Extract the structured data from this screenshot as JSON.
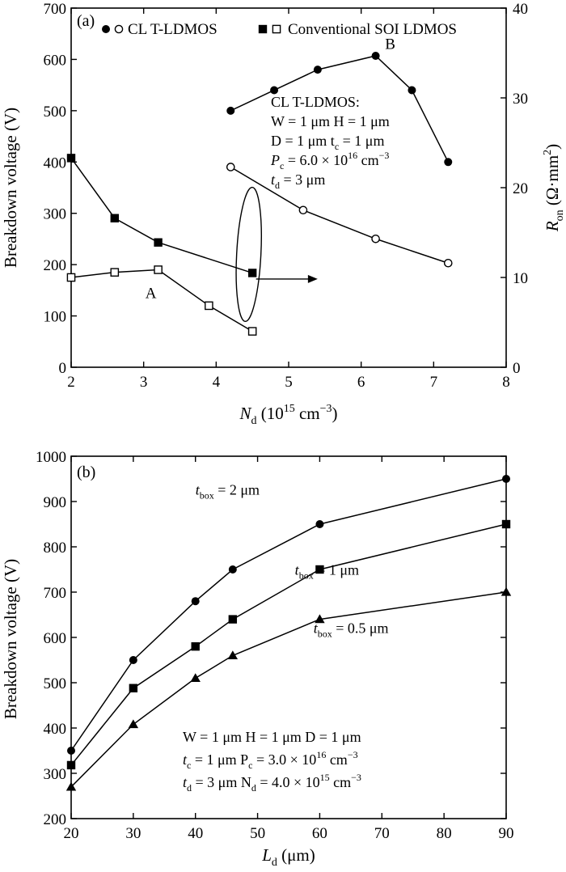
{
  "chart_data": [
    {
      "panel": "(a)",
      "type": "line",
      "xlabel": {
        "sym": "N",
        "sub": "d",
        "unit": " (10",
        "sup": "15",
        "unit2": " cm",
        "sup2": "−3",
        "close": ")"
      },
      "ylabel_left": "Breakdown voltage (V)",
      "ylabel_right": {
        "sym": "R",
        "sub": "on",
        "unit": " (Ω·mm",
        "sup": "2",
        "close": ")"
      },
      "xlim": [
        2,
        8
      ],
      "ylim_left": [
        0,
        700
      ],
      "ylim_right": [
        0,
        40
      ],
      "xticks": [
        "2",
        "3",
        "4",
        "5",
        "6",
        "7",
        "8"
      ],
      "yticks_left": [
        "0",
        "100",
        "200",
        "300",
        "400",
        "500",
        "600",
        "700"
      ],
      "yticks_right": [
        "0",
        "10",
        "20",
        "30",
        "40"
      ],
      "legend": [
        {
          "markers": [
            "filled-circle",
            "open-circle"
          ],
          "label": "CL T-LDMOS"
        },
        {
          "markers": [
            "filled-square",
            "open-square"
          ],
          "label": "Conventional SOI LDMOS"
        }
      ],
      "series": [
        {
          "name": "CL T-LDMOS",
          "marker": "filled-circle",
          "axis": "left",
          "x": [
            4.2,
            4.8,
            5.4,
            6.2,
            6.7,
            7.2
          ],
          "y": [
            500,
            540,
            580,
            607,
            540,
            400
          ]
        },
        {
          "name": "CL T-LDMOS",
          "marker": "open-circle",
          "axis": "right",
          "x": [
            4.2,
            5.2,
            6.2,
            7.2
          ],
          "y": [
            22.3,
            17.5,
            14.3,
            11.6
          ]
        },
        {
          "name": "Conventional SOI LDMOS",
          "marker": "filled-square",
          "axis": "right",
          "x": [
            2.0,
            2.6,
            3.2,
            4.5
          ],
          "y": [
            23.3,
            16.6,
            13.9,
            10.5
          ]
        },
        {
          "name": "Conventional SOI LDMOS",
          "marker": "open-square",
          "axis": "left",
          "x": [
            2.0,
            2.6,
            3.2,
            3.9,
            4.5
          ],
          "y": [
            175,
            185,
            190,
            120,
            70
          ]
        }
      ],
      "point_labels": [
        {
          "text": "A",
          "x": 3.1,
          "y": 135
        },
        {
          "text": "B",
          "x": 6.4,
          "y": 620
        }
      ],
      "annotation": {
        "line1": "CL T-LDMOS:",
        "line2": "W = 1 μm  H = 1 μm",
        "line3": "D = 1 μm  t",
        "line3_sub": "c",
        "line3_rest": " = 1 μm",
        "line4_pre": "P",
        "line4_sub": "c",
        "line4_rest": " = 6.0 × 10",
        "line4_sup": "16",
        "line4_unit": " cm",
        "line4_sup2": "−3",
        "line5_pre": "t",
        "line5_sub": "d",
        "line5_rest": " = 3 μm"
      }
    },
    {
      "panel": "(b)",
      "type": "line",
      "xlabel": {
        "sym": "L",
        "sub": "d",
        "unit": " (μm)"
      },
      "ylabel": "Breakdown voltage (V)",
      "xlim": [
        20,
        90
      ],
      "ylim": [
        200,
        1000
      ],
      "xticks": [
        "20",
        "30",
        "40",
        "50",
        "60",
        "70",
        "80",
        "90"
      ],
      "yticks": [
        "200",
        "300",
        "400",
        "500",
        "600",
        "700",
        "800",
        "900",
        "1000"
      ],
      "x": [
        20,
        30,
        40,
        46,
        60,
        90
      ],
      "series": [
        {
          "name": {
            "pre": "t",
            "sub": "box",
            "rest": " = 2 μm"
          },
          "marker": "filled-circle",
          "values": [
            350,
            550,
            680,
            750,
            850,
            950
          ]
        },
        {
          "name": {
            "pre": "t",
            "sub": "box",
            "rest": " = 1 μm"
          },
          "marker": "filled-square",
          "values": [
            318,
            488,
            580,
            640,
            750,
            850
          ]
        },
        {
          "name": {
            "pre": "t",
            "sub": "box",
            "rest": " = 0.5 μm"
          },
          "marker": "filled-triangle",
          "values": [
            270,
            408,
            510,
            560,
            640,
            700
          ]
        }
      ],
      "annotation": {
        "line1": "W = 1 μm  H = 1 μm  D = 1 μm",
        "line2_pre": "t",
        "line2_sub": "c",
        "line2_mid": " = 1 μm  P",
        "line2_sub2": "c",
        "line2_rest": " = 3.0 × 10",
        "line2_sup": "16",
        "line2_unit": " cm",
        "line2_sup2": "−3",
        "line3_pre": "t",
        "line3_sub": "d",
        "line3_mid": " = 3 μm  N",
        "line3_sub2": "d",
        "line3_rest": " = 4.0 × 10",
        "line3_sup": "15",
        "line3_unit": " cm",
        "line3_sup2": "−3"
      }
    }
  ]
}
